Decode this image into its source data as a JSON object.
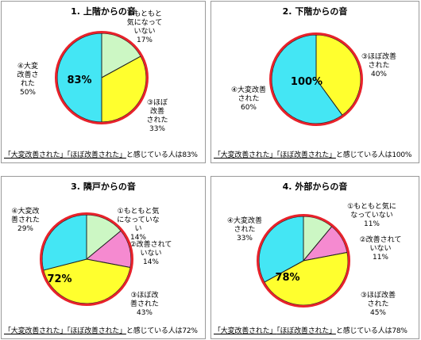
{
  "summary_parts": {
    "q1": "「大変改善された」",
    "q2": "「ほぼ改善された」",
    "mid": "と感じている人は"
  },
  "colors": {
    "ring": "#e8222b",
    "cyan": "#44e6f4",
    "yellow": "#ffff2e",
    "green": "#ccf7c4",
    "pink": "#f58ad0",
    "edge": "#222222"
  },
  "chart_data": [
    {
      "type": "pie",
      "title": "1. 上階からの音",
      "total_label": "83%",
      "summary_total": "83%",
      "slices": [
        {
          "label": "①もともと気になっていない",
          "lines": [
            "①もともと",
            "気になって",
            "いない"
          ],
          "value": 17,
          "pct_label": "17%",
          "color": "#ccf7c4"
        },
        {
          "label": "③ほぼ改善された",
          "lines": [
            "③ほぼ",
            "改善",
            "された"
          ],
          "value": 33,
          "pct_label": "33%",
          "color": "#ffff2e"
        },
        {
          "label": "④大変改善された",
          "lines": [
            "④大変",
            "改善さ",
            "れた"
          ],
          "value": 50,
          "pct_label": "50%",
          "color": "#44e6f4"
        }
      ]
    },
    {
      "type": "pie",
      "title": "2. 下階からの音",
      "total_label": "100%",
      "summary_total": "100%",
      "slices": [
        {
          "label": "③ほぼ改善された",
          "lines": [
            "③ほぼ改善",
            "された"
          ],
          "value": 40,
          "pct_label": "40%",
          "color": "#ffff2e"
        },
        {
          "label": "④大変改善された",
          "lines": [
            "④大変改善",
            "された"
          ],
          "value": 60,
          "pct_label": "60%",
          "color": "#44e6f4"
        }
      ]
    },
    {
      "type": "pie",
      "title": "3. 隣戸からの音",
      "total_label": "72%",
      "summary_total": "72%",
      "slices": [
        {
          "label": "①もともと気になっていない",
          "lines": [
            "①もともと気",
            "になっていな",
            "い"
          ],
          "value": 14,
          "pct_label": "14%",
          "color": "#ccf7c4"
        },
        {
          "label": "②改善されていない",
          "lines": [
            "②改善されて",
            "いない"
          ],
          "value": 14,
          "pct_label": "14%",
          "color": "#f58ad0"
        },
        {
          "label": "③ほぼ改善された",
          "lines": [
            "③ほぼ改",
            "善された"
          ],
          "value": 43,
          "pct_label": "43%",
          "color": "#ffff2e"
        },
        {
          "label": "④大変改善された",
          "lines": [
            "④大変改",
            "善された"
          ],
          "value": 29,
          "pct_label": "29%",
          "color": "#44e6f4"
        }
      ]
    },
    {
      "type": "pie",
      "title": "4. 外部からの音",
      "total_label": "78%",
      "summary_total": "78%",
      "slices": [
        {
          "label": "①もともと気になっていない",
          "lines": [
            "①もともと気に",
            "なっていない"
          ],
          "value": 11,
          "pct_label": "11%",
          "color": "#ccf7c4"
        },
        {
          "label": "②改善されていない",
          "lines": [
            "②改善されて",
            "いない"
          ],
          "value": 11,
          "pct_label": "11%",
          "color": "#f58ad0"
        },
        {
          "label": "③ほぼ改善された",
          "lines": [
            "③ほぼ改善",
            "された"
          ],
          "value": 45,
          "pct_label": "45%",
          "color": "#ffff2e"
        },
        {
          "label": "④大変改善された",
          "lines": [
            "④大変改善",
            "された"
          ],
          "value": 33,
          "pct_label": "33%",
          "color": "#44e6f4"
        }
      ]
    }
  ]
}
